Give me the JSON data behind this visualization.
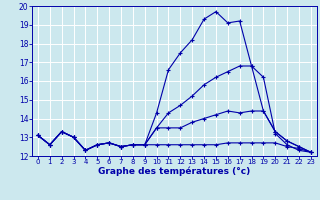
{
  "xlabel": "Graphe des températures (°c)",
  "bg_color": "#cce8ee",
  "grid_color": "#ffffff",
  "line_color": "#0000aa",
  "ylim": [
    12,
    20
  ],
  "xlim": [
    -0.5,
    23.5
  ],
  "yticks": [
    12,
    13,
    14,
    15,
    16,
    17,
    18,
    19,
    20
  ],
  "xticks": [
    0,
    1,
    2,
    3,
    4,
    5,
    6,
    7,
    8,
    9,
    10,
    11,
    12,
    13,
    14,
    15,
    16,
    17,
    18,
    19,
    20,
    21,
    22,
    23
  ],
  "series": [
    {
      "x": [
        0,
        1,
        2,
        3,
        4,
        5,
        6,
        7,
        8,
        9,
        10,
        11,
        12,
        13,
        14,
        15,
        16,
        17,
        18,
        19,
        20,
        21,
        22,
        23
      ],
      "y": [
        13.1,
        12.6,
        13.3,
        13.0,
        12.3,
        12.6,
        12.7,
        12.5,
        12.6,
        12.6,
        14.3,
        16.6,
        17.5,
        18.2,
        19.3,
        19.7,
        19.1,
        19.2,
        16.8,
        16.2,
        13.2,
        12.6,
        12.3,
        12.2
      ]
    },
    {
      "x": [
        0,
        1,
        2,
        3,
        4,
        5,
        6,
        7,
        8,
        9,
        10,
        11,
        12,
        13,
        14,
        15,
        16,
        17,
        18,
        19,
        20,
        21,
        22,
        23
      ],
      "y": [
        13.1,
        12.6,
        13.3,
        13.0,
        12.3,
        12.6,
        12.7,
        12.5,
        12.6,
        12.6,
        13.5,
        14.3,
        14.7,
        15.2,
        15.8,
        16.2,
        16.5,
        16.8,
        16.8,
        14.4,
        13.3,
        12.8,
        12.5,
        12.2
      ]
    },
    {
      "x": [
        0,
        1,
        2,
        3,
        4,
        5,
        6,
        7,
        8,
        9,
        10,
        11,
        12,
        13,
        14,
        15,
        16,
        17,
        18,
        19,
        20,
        21,
        22,
        23
      ],
      "y": [
        13.1,
        12.6,
        13.3,
        13.0,
        12.3,
        12.6,
        12.7,
        12.5,
        12.6,
        12.6,
        13.5,
        13.5,
        13.5,
        13.8,
        14.0,
        14.2,
        14.4,
        14.3,
        14.4,
        14.4,
        13.3,
        12.8,
        12.5,
        12.2
      ]
    },
    {
      "x": [
        0,
        1,
        2,
        3,
        4,
        5,
        6,
        7,
        8,
        9,
        10,
        11,
        12,
        13,
        14,
        15,
        16,
        17,
        18,
        19,
        20,
        21,
        22,
        23
      ],
      "y": [
        13.1,
        12.6,
        13.3,
        13.0,
        12.3,
        12.6,
        12.7,
        12.5,
        12.6,
        12.6,
        12.6,
        12.6,
        12.6,
        12.6,
        12.6,
        12.6,
        12.7,
        12.7,
        12.7,
        12.7,
        12.7,
        12.5,
        12.4,
        12.2
      ]
    }
  ]
}
